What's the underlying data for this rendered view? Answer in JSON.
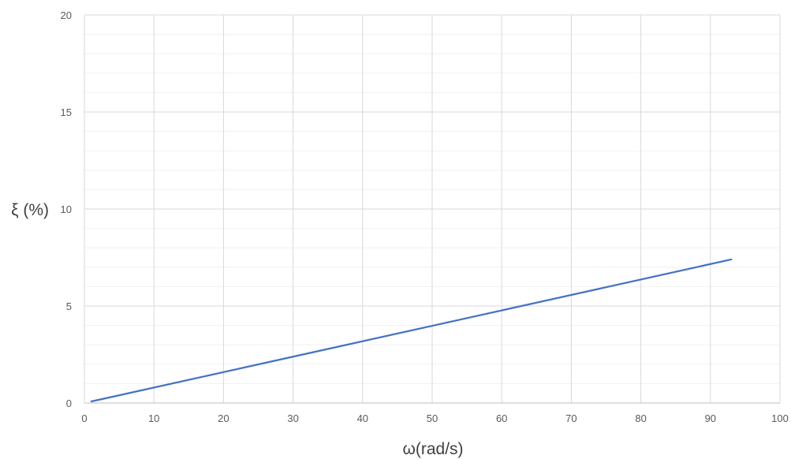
{
  "chart_data": {
    "type": "line",
    "title": "",
    "xlabel": "ω(rad/s)",
    "ylabel": "ξ (%)",
    "xlim": [
      0,
      100
    ],
    "ylim": [
      0,
      20
    ],
    "x_ticks": [
      "0",
      "10",
      "20",
      "30",
      "40",
      "50",
      "60",
      "70",
      "80",
      "90",
      "100"
    ],
    "y_ticks": [
      "0",
      "5",
      "10",
      "15",
      "20"
    ],
    "grid": true,
    "legend": "none",
    "series": [
      {
        "color": "#4472c4",
        "x": [
          1,
          93
        ],
        "y": [
          0.08,
          7.4
        ]
      }
    ]
  }
}
